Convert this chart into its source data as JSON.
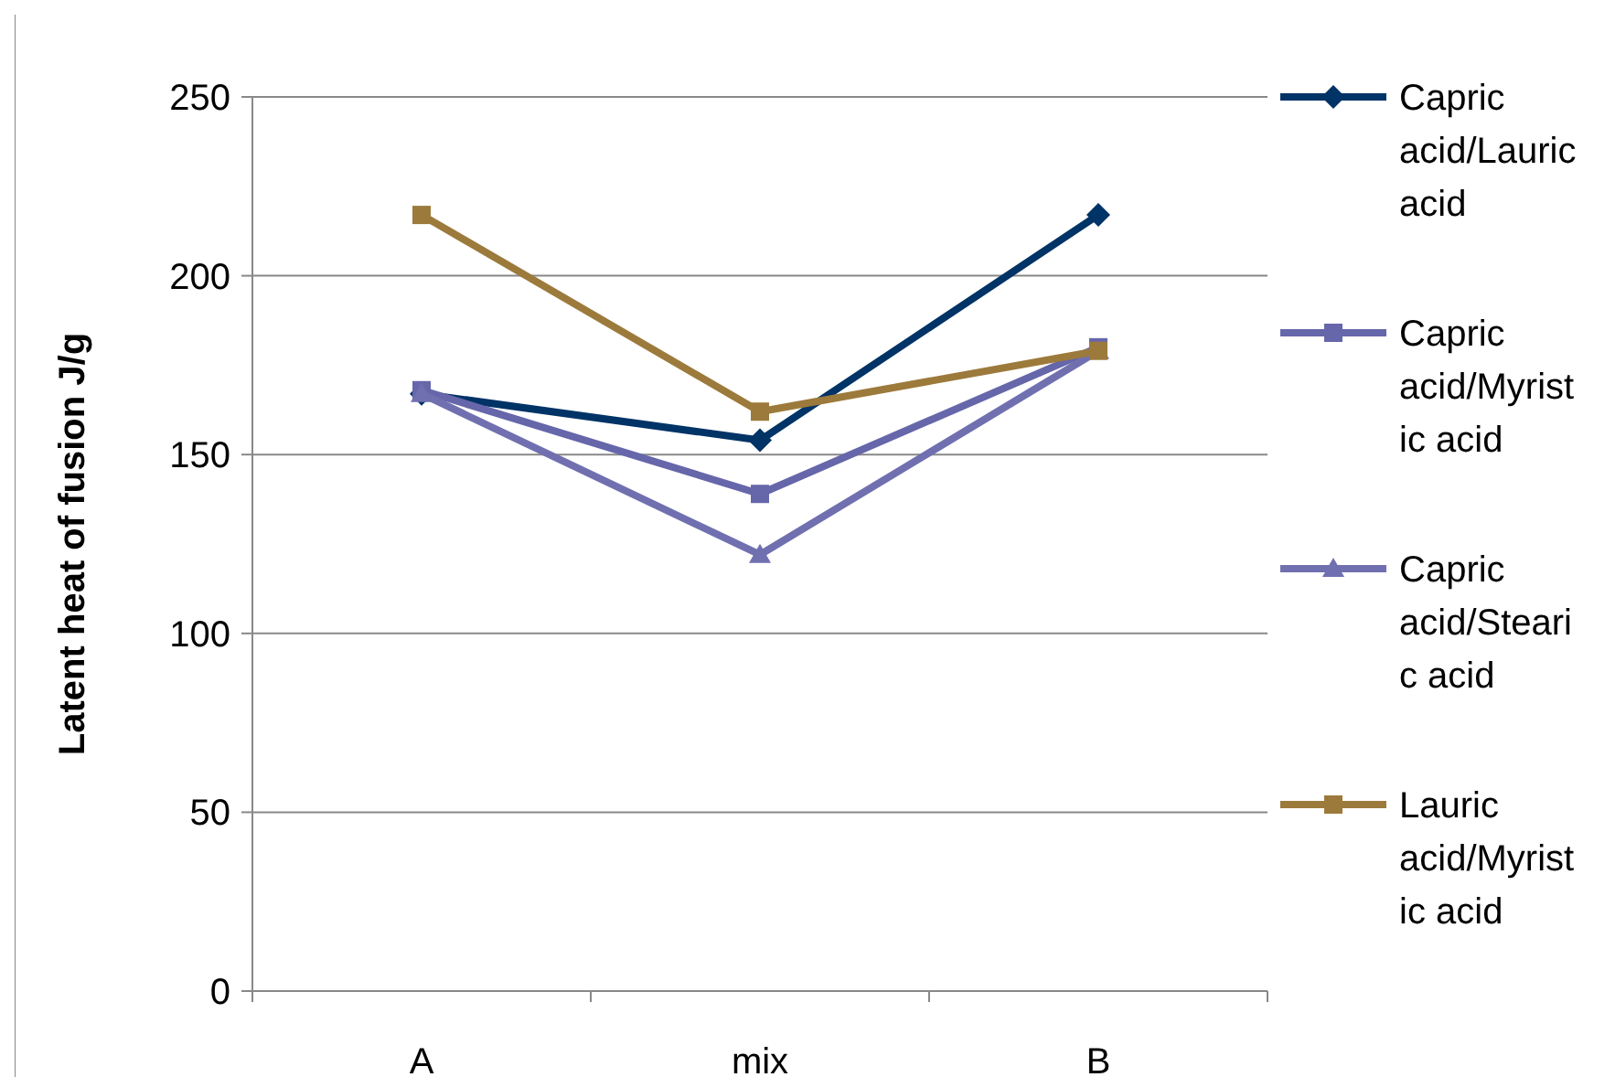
{
  "chart_data": {
    "type": "line",
    "ylabel": "Latent heat of fusion J/g",
    "categories": [
      "A",
      "mix",
      "B"
    ],
    "series": [
      {
        "name": "Capric acid/Lauric acid",
        "color": "#003366",
        "marker": "diamond",
        "values": [
          167,
          154,
          217
        ]
      },
      {
        "name": "Capric acid/Myristic acid",
        "color": "#6666aa",
        "marker": "square",
        "values": [
          168,
          139,
          180
        ]
      },
      {
        "name": "Capric acid/Stearic acid",
        "color": "#7070b0",
        "marker": "triangle",
        "values": [
          167,
          122,
          179
        ]
      },
      {
        "name": "Lauric acid/Myristic acid",
        "color": "#9c7a3c",
        "marker": "square",
        "values": [
          217,
          162,
          179
        ]
      }
    ],
    "ylim": [
      0,
      250
    ],
    "yticks": [
      0,
      50,
      100,
      150,
      200,
      250
    ],
    "grid": "y",
    "legend": "right",
    "line_style": "solid"
  }
}
